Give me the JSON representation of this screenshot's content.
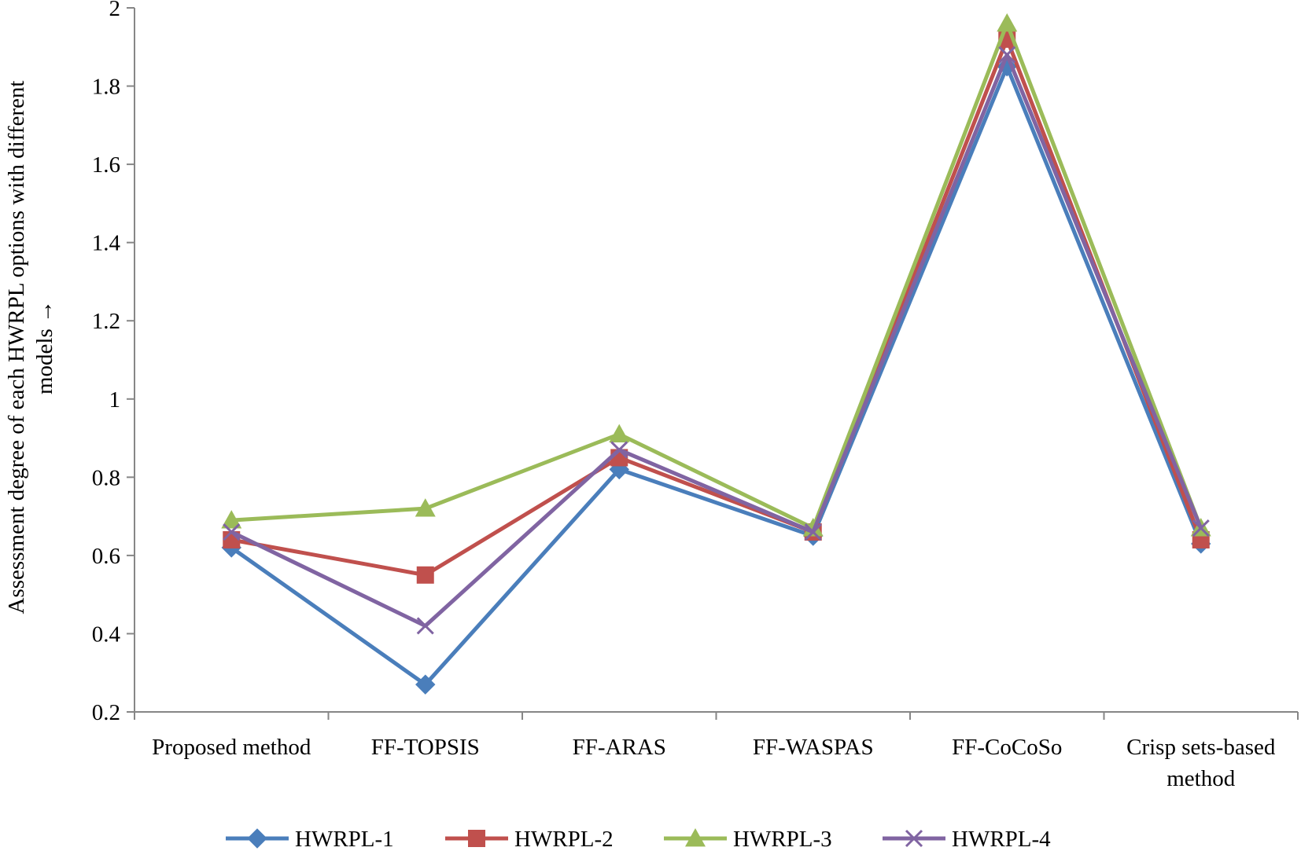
{
  "chart_data": {
    "type": "line",
    "categories": [
      "Proposed method",
      "FF-TOPSIS",
      "FF-ARAS",
      "FF-WASPAS",
      "FF-CoCoSo",
      "Crisp sets-based method"
    ],
    "ylabel_lines": [
      "Assessment degree of each HWRPL options with different",
      "models →"
    ],
    "xlabel": "",
    "ylim": [
      0.2,
      2
    ],
    "yticks": [
      "0.2",
      "0.4",
      "0.6",
      "0.8",
      "1",
      "1.2",
      "1.4",
      "1.6",
      "1.8",
      "2"
    ],
    "grid": false,
    "legend_position": "bottom",
    "series": [
      {
        "name": "HWRPL-1",
        "color": "#4a7ebb",
        "marker": "diamond",
        "values": [
          0.62,
          0.27,
          0.82,
          0.65,
          1.85,
          0.63
        ]
      },
      {
        "name": "HWRPL-2",
        "color": "#c0504d",
        "marker": "square",
        "values": [
          0.64,
          0.55,
          0.85,
          0.66,
          1.92,
          0.64
        ]
      },
      {
        "name": "HWRPL-3",
        "color": "#9bbb59",
        "marker": "triangle",
        "values": [
          0.69,
          0.72,
          0.91,
          0.67,
          1.96,
          0.67
        ]
      },
      {
        "name": "HWRPL-4",
        "color": "#8064a2",
        "marker": "x",
        "values": [
          0.66,
          0.42,
          0.87,
          0.66,
          1.88,
          0.67
        ]
      }
    ]
  }
}
